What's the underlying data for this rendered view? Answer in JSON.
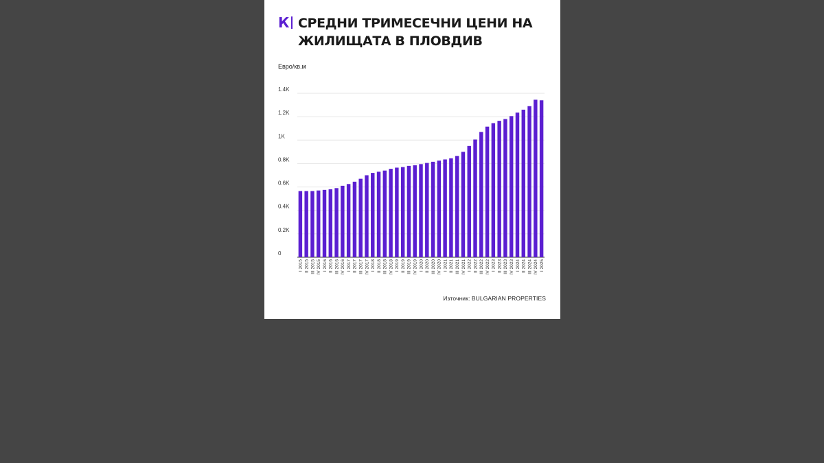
{
  "brand": {
    "logo_letter": "К"
  },
  "title": "СРЕДНИ ТРИМЕСЕЧНИ ЦЕНИ НА ЖИЛИЩАТА В ПЛОВДИВ",
  "source": "Източник: BULGARIAN PROPERTIES",
  "colors": {
    "bar": "#5b1fd1",
    "background": "#454545",
    "card": "#ffffff",
    "grid": "#e6e6e6",
    "logo": "#5b1fd1"
  },
  "chart_data": {
    "type": "bar",
    "title": "СРЕДНИ ТРИМЕСЕЧНИ ЦЕНИ НА ЖИЛИЩАТА В ПЛОВДИВ",
    "xlabel": "",
    "ylabel": "Евро/кв.м",
    "ylim": [
      0,
      1400
    ],
    "yticks": [
      0,
      200,
      400,
      600,
      800,
      1000,
      1200,
      1400
    ],
    "ytick_labels": [
      "0",
      "0.2K",
      "0.4K",
      "0.6K",
      "0.8K",
      "1K",
      "1.2K",
      "1.4K"
    ],
    "grid": true,
    "categories": [
      "I 2015",
      "II 2015",
      "III 2015",
      "IV 2015",
      "I 2016",
      "II 2016",
      "III 2016",
      "IV 2016",
      "I 2017",
      "II 2017",
      "III 2017",
      "IV 2017",
      "I 2018",
      "II 2018",
      "III 2018",
      "IV 2018",
      "I 2019",
      "II 2019",
      "III 2019",
      "IV 2019",
      "I 2020",
      "II 2020",
      "III 2020",
      "IV 2020",
      "I 2021",
      "II 2021",
      "III 2021",
      "IV 2021",
      "I 2022",
      "II 2022",
      "III 2022",
      "IV 2022",
      "I 2023",
      "II 2023",
      "III 2023",
      "IV 2023",
      "I 2024",
      "II 2024",
      "III 2024",
      "IV 2024",
      "I 2025"
    ],
    "values": [
      565,
      565,
      565,
      570,
      575,
      580,
      590,
      610,
      625,
      645,
      670,
      700,
      720,
      730,
      740,
      755,
      765,
      770,
      780,
      785,
      795,
      805,
      815,
      825,
      835,
      845,
      865,
      900,
      950,
      1005,
      1070,
      1115,
      1145,
      1165,
      1180,
      1205,
      1235,
      1260,
      1290,
      1345,
      1340
    ]
  }
}
